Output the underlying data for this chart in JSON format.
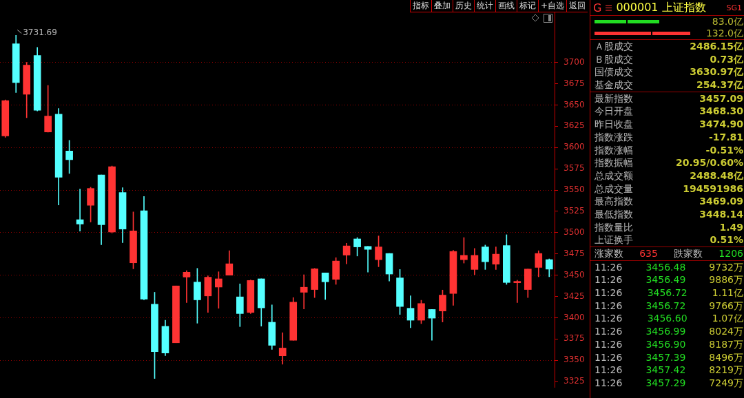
{
  "chart_data": [
    {
      "type": "other",
      "annotations": [
        "指标",
        "叠加",
        "历史",
        "统计",
        "画线",
        "标记",
        "+自选",
        "返回"
      ]
    },
    {
      "type": "candlestick",
      "categories": [
        null,
        null,
        null,
        null,
        null,
        null,
        null,
        null,
        null,
        null,
        null,
        null,
        null,
        null,
        null,
        null,
        null,
        null,
        null,
        null,
        null,
        null,
        null,
        null,
        null,
        null,
        null,
        null,
        null,
        null,
        null,
        null,
        null,
        null,
        null,
        null,
        null,
        null,
        null,
        null,
        null,
        null,
        null,
        null,
        null,
        null,
        null,
        null,
        null,
        null,
        null,
        null
      ],
      "ohlc": [
        [
          3613.6,
          3656,
          3612,
          3655.2
        ],
        [
          3721.8,
          3731.69,
          3664.6,
          3676.2
        ],
        [
          3662.5,
          3700,
          3635.1,
          3696.8
        ],
        [
          3708.1,
          3717.7,
          3643,
          3643.7
        ],
        [
          3618.2,
          3673,
          3618,
          3637
        ],
        [
          3639.1,
          3645.8,
          3532.4,
          3565.1
        ],
        [
          3595.9,
          3608.5,
          3569.4,
          3585.7
        ],
        [
          3515.2,
          3551.1,
          3501.8,
          3510.1
        ],
        [
          3532.1,
          3553.3,
          3512.5,
          3551.9
        ],
        [
          3567.8,
          3567.8,
          3485.7,
          3509.3
        ],
        [
          3500.7,
          3578.2,
          3499.6,
          3577.4
        ],
        [
          3547.1,
          3552.7,
          3488.1,
          3504.2
        ],
        [
          3464.5,
          3524.3,
          3457.5,
          3502
        ],
        [
          3525.6,
          3542.5,
          3421,
          3421.8
        ],
        [
          3415.9,
          3429.9,
          3328.7,
          3360.1
        ],
        [
          3389.9,
          3397.1,
          3355.5,
          3358.5
        ],
        [
          3370.6,
          3437.4,
          3370.6,
          3437.4
        ],
        [
          3447.8,
          3455.4,
          3417.8,
          3453.5
        ],
        [
          3441.9,
          3458,
          3393.6,
          3421
        ],
        [
          3425.6,
          3449.2,
          3406.2,
          3447.6
        ],
        [
          3436,
          3454,
          3411.1,
          3445.7
        ],
        [
          3450,
          3478.7,
          3450,
          3463.4
        ],
        [
          3424.5,
          3439.8,
          3389.6,
          3404.9
        ],
        [
          3406.2,
          3444.4,
          3404.9,
          3443.8
        ],
        [
          3445.7,
          3445.7,
          3390.1,
          3411.6
        ],
        [
          3394.7,
          3415.1,
          3362.8,
          3367.6
        ],
        [
          3355.3,
          3382.4,
          3345.4,
          3364.4
        ],
        [
          3373.5,
          3423.7,
          3373.5,
          3418.3
        ],
        [
          3429.9,
          3450.5,
          3410.3,
          3435.8
        ],
        [
          3433.1,
          3458,
          3423.7,
          3457.5
        ],
        [
          3452.7,
          3452.7,
          3421.5,
          3442.2
        ],
        [
          3445.1,
          3470.6,
          3439.2,
          3466.6
        ],
        [
          3473.6,
          3487.5,
          3463.4,
          3484.4
        ],
        [
          3492.6,
          3494.2,
          3472.5,
          3483.2
        ],
        [
          3483.8,
          3483.8,
          3453.7,
          3480.3
        ],
        [
          3468.2,
          3496.1,
          3459.9,
          3483.2
        ],
        [
          3475.5,
          3475.5,
          3443,
          3451.3
        ],
        [
          3446.8,
          3456.7,
          3403.8,
          3413.2
        ],
        [
          3411.1,
          3425.8,
          3388.3,
          3397.1
        ],
        [
          3397.1,
          3420.5,
          3393.1,
          3416.7
        ],
        [
          3409.7,
          3409.7,
          3373.5,
          3399.5
        ],
        [
          3407.9,
          3432.5,
          3395,
          3426.6
        ],
        [
          3428.5,
          3479.2,
          3414.6,
          3477.9
        ],
        [
          3468.2,
          3494.2,
          3464.2,
          3473.3
        ],
        [
          3456.7,
          3481.4,
          3450.5,
          3473.3
        ],
        [
          3483.2,
          3485.4,
          3456.7,
          3465.8
        ],
        [
          3462.9,
          3483.2,
          3456.7,
          3474.7
        ],
        [
          3484.8,
          3497.5,
          3439.2,
          3441.4
        ],
        [
          3441.1,
          3444.1,
          3417.8,
          3442.7
        ],
        [
          3433.1,
          3457.2,
          3423.7,
          3457.2
        ],
        [
          3459.1,
          3478.7,
          3448.1,
          3475.5
        ],
        [
          3468.3,
          3469.09,
          3448.14,
          3457.09
        ]
      ],
      "colors": [
        "#ff3333",
        "#54ffff",
        "#ff3333",
        "#54ffff",
        "#ff3333",
        "#54ffff",
        "#54ffff",
        "#54ffff",
        "#ff3333",
        "#54ffff",
        "#ff3333",
        "#54ffff",
        "#ff3333",
        "#54ffff",
        "#54ffff",
        "#54ffff",
        "#ff3333",
        "#ff3333",
        "#54ffff",
        "#ff3333",
        "#ff3333",
        "#ff3333",
        "#54ffff",
        "#ff3333",
        "#54ffff",
        "#54ffff",
        "#ff3333",
        "#ff3333",
        "#ff3333",
        "#ff3333",
        "#54ffff",
        "#ff3333",
        "#ff3333",
        "#54ffff",
        "#54ffff",
        "#ff3333",
        "#54ffff",
        "#54ffff",
        "#54ffff",
        "#ff3333",
        "#54ffff",
        "#ff3333",
        "#ff3333",
        "#ff3333",
        "#ff3333",
        "#54ffff",
        "#ff3333",
        "#54ffff",
        "#ff3333",
        "#ff3333",
        "#ff3333",
        "#54ffff"
      ],
      "ylim": [
        3318,
        3761
      ],
      "yticks": [
        3325,
        3350,
        3375,
        3400,
        3425,
        3450,
        3475,
        3500,
        3525,
        3550,
        3575,
        3600,
        3625,
        3650,
        3675,
        3700
      ],
      "grid": "y",
      "tick_labels": "y",
      "annotations": [
        "3731.69"
      ]
    },
    {
      "type": "other",
      "title": "000001 上证指数",
      "annotations": [
        "G",
        "SG1",
        "83.0亿",
        "132.0亿",
        "Ａ股成交 2486.15亿",
        "Ｂ股成交 0.73亿",
        "国债成交 3630.97亿",
        "基金成交 254.37亿",
        "最新指数 3457.09",
        "今日开盘 3468.30",
        "昨日收盘 3474.90",
        "指数涨跌 -17.81",
        "指数涨幅 -0.51%",
        "指数振幅 20.95/0.60%",
        "总成交额 2488.48亿",
        "总成交量 194591986",
        "最高指数 3469.09",
        "最低指数 3448.14",
        "指数量比 1.49",
        "上证换手 0.51%",
        "涨家数 635 跌家数 1206",
        "11:26 3456.48 9732万",
        "11:26 3456.49 9886万",
        "11:26 3456.72 1.11亿",
        "11:26 3456.72 9766万",
        "11:26 3456.60 1.07亿",
        "11:26 3456.99 8024万",
        "11:26 3456.90 8187万",
        "11:26 3457.39 8496万",
        "11:26 3457.42 8219万",
        "11:26 3457.29 7249万"
      ]
    }
  ]
}
